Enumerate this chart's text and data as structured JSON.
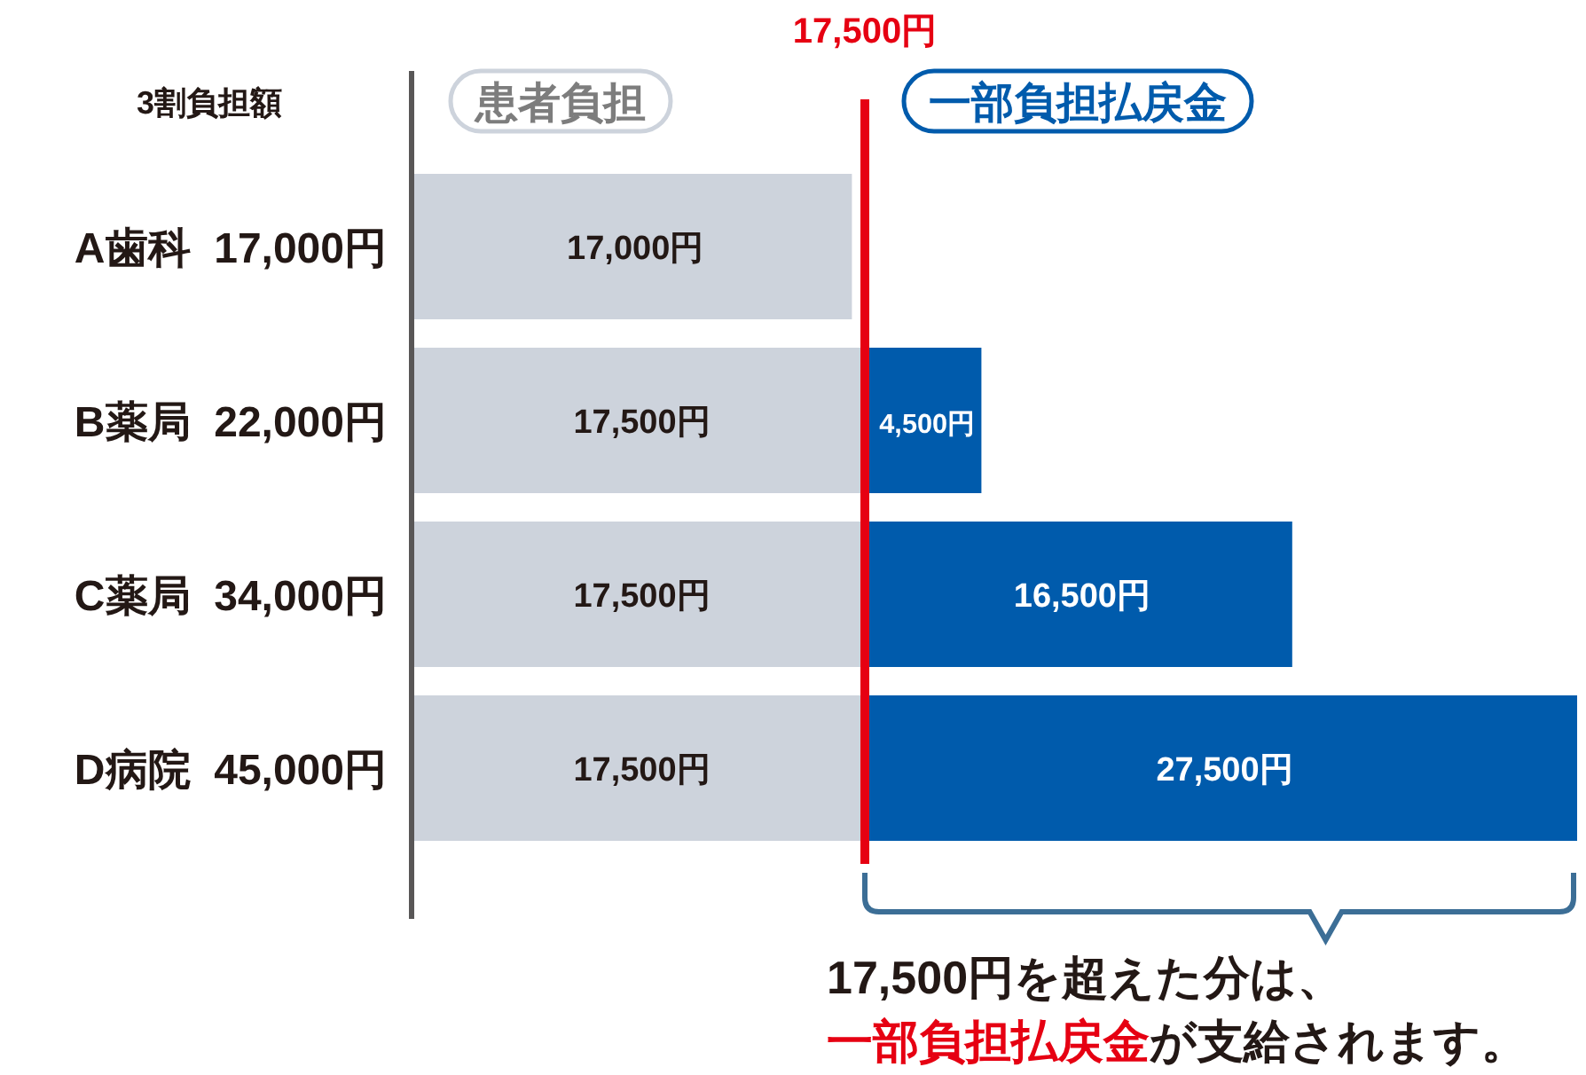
{
  "chart_data": {
    "type": "bar",
    "orientation": "horizontal",
    "stacked": true,
    "legend": "top",
    "categories": [
      "A歯科  17,000円",
      "B薬局  22,000円",
      "C薬局  34,000円",
      "D病院  45,000円"
    ],
    "series": [
      {
        "name": "患者負担",
        "color": "#cdd3dc",
        "values": [
          17000,
          17500,
          17500,
          17500
        ],
        "value_labels": [
          "17,000円",
          "17,500円",
          "17,500円",
          "17,500円"
        ]
      },
      {
        "name": "一部負担払戻金",
        "color": "#005bac",
        "values": [
          null,
          4500,
          16500,
          27500
        ],
        "value_labels": [
          null,
          "4,500円",
          "16,500円",
          "27,500円"
        ]
      }
    ],
    "ref_lines": [
      {
        "axis": "x",
        "value": 17500,
        "label": "17,500円",
        "color": "#e60012"
      }
    ],
    "annotations": [
      "3割負担額",
      "17,500円を超えた分は、",
      "一部負担払戻金が支給されます。"
    ]
  }
}
